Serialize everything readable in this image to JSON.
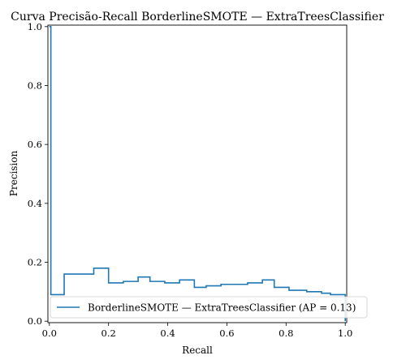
{
  "chart_data": {
    "type": "line",
    "title": "Curva Precisão-Recall BorderlineSMOTE — ExtraTreesClassifier",
    "xlabel": "Recall",
    "ylabel": "Precision",
    "xlim": [
      -0.005,
      1.005
    ],
    "ylim": [
      -0.005,
      1.005
    ],
    "xticks": [
      0.0,
      0.2,
      0.4,
      0.6,
      0.8,
      1.0
    ],
    "xtick_labels": [
      "0.0",
      "0.2",
      "0.4",
      "0.6",
      "0.8",
      "1.0"
    ],
    "yticks": [
      0.0,
      0.2,
      0.4,
      0.6,
      0.8,
      1.0
    ],
    "ytick_labels": [
      "0.0",
      "0.2",
      "0.4",
      "0.6",
      "0.8",
      "1.0"
    ],
    "grid": false,
    "legend_position": "lower-right",
    "series": [
      {
        "name": "BorderlineSMOTE — ExtraTreesClassifier (AP = 0.13)",
        "color": "#1f77b4",
        "drawstyle": "steps-post",
        "x": [
          1.0,
          1.0,
          0.95,
          0.95,
          0.92,
          0.92,
          0.87,
          0.87,
          0.81,
          0.81,
          0.76,
          0.76,
          0.72,
          0.72,
          0.67,
          0.67,
          0.63,
          0.63,
          0.58,
          0.58,
          0.53,
          0.53,
          0.49,
          0.49,
          0.44,
          0.44,
          0.39,
          0.39,
          0.34,
          0.34,
          0.3,
          0.3,
          0.25,
          0.25,
          0.2,
          0.2,
          0.15,
          0.15,
          0.05,
          0.05,
          0.005,
          0.005,
          0.0,
          0.0
        ],
        "y": [
          0.0,
          0.09,
          0.09,
          0.095,
          0.095,
          0.1,
          0.1,
          0.105,
          0.105,
          0.115,
          0.115,
          0.14,
          0.14,
          0.13,
          0.13,
          0.125,
          0.125,
          0.125,
          0.125,
          0.12,
          0.12,
          0.115,
          0.115,
          0.14,
          0.14,
          0.13,
          0.13,
          0.135,
          0.135,
          0.15,
          0.15,
          0.135,
          0.135,
          0.13,
          0.13,
          0.18,
          0.18,
          0.16,
          0.16,
          0.09,
          0.09,
          1.0,
          1.0,
          1.0
        ]
      }
    ]
  }
}
